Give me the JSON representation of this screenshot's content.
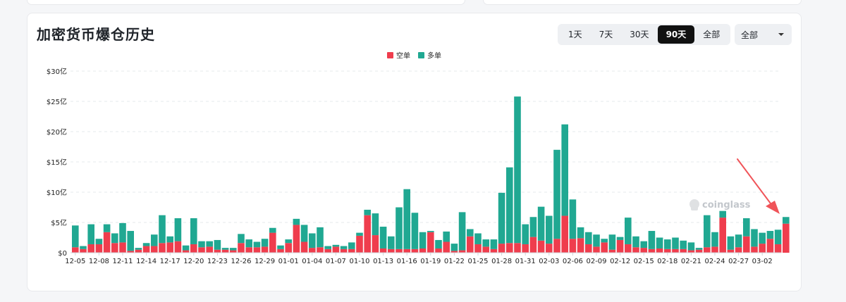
{
  "header": {
    "title": "加密货币爆仓历史"
  },
  "range_buttons": [
    {
      "label": "1天",
      "active": false
    },
    {
      "label": "7天",
      "active": false
    },
    {
      "label": "30天",
      "active": false
    },
    {
      "label": "90天",
      "active": true
    },
    {
      "label": "全部",
      "active": false
    }
  ],
  "select": {
    "value": "全部"
  },
  "watermark": {
    "text": "coinglass"
  },
  "colors": {
    "short": "#ef3d4d",
    "long": "#20a892",
    "arrow": "#f05459"
  },
  "chart_data": {
    "type": "bar",
    "stacked": true,
    "legend": [
      "空单",
      "多单"
    ],
    "legend_position": "top-center",
    "y_tick_labels": [
      "$0",
      "$5亿",
      "$10亿",
      "$15亿",
      "$20亿",
      "$25亿",
      "$30亿"
    ],
    "ylim": [
      0,
      30
    ],
    "grid": true,
    "x_tick_labels": [
      "12-05",
      "12-08",
      "12-11",
      "12-14",
      "12-17",
      "12-20",
      "12-23",
      "12-26",
      "12-29",
      "01-01",
      "01-04",
      "01-07",
      "01-10",
      "01-13",
      "01-16",
      "01-19",
      "01-22",
      "01-25",
      "01-28",
      "01-31",
      "02-03",
      "02-06",
      "02-09",
      "02-12",
      "02-15",
      "02-18",
      "02-21",
      "02-24",
      "02-27",
      "03-02"
    ],
    "series": [
      {
        "name": "空单",
        "values": [
          0.9,
          0.6,
          1.4,
          1.4,
          3.4,
          1.6,
          1.7,
          0.3,
          0.5,
          1.1,
          1.1,
          1.6,
          1.7,
          1.9,
          0.4,
          1.4,
          0.9,
          1.0,
          0.5,
          0.5,
          0.4,
          1.6,
          0.9,
          0.9,
          1.0,
          3.3,
          0.6,
          1.6,
          4.6,
          1.8,
          0.8,
          0.9,
          0.6,
          1.0,
          0.6,
          0.6,
          2.8,
          6.2,
          2.9,
          0.7,
          0.6,
          0.6,
          0.6,
          0.6,
          0.7,
          3.4,
          0.7,
          1.8,
          0.3,
          0.4,
          2.7,
          1.4,
          1.0,
          0.6,
          1.5,
          1.6,
          1.6,
          1.4,
          2.6,
          2.0,
          1.5,
          2.3,
          6.1,
          2.3,
          2.4,
          1.4,
          1.0,
          1.7,
          0.5,
          2.1,
          1.4,
          0.9,
          0.8,
          0.6,
          0.7,
          0.6,
          0.6,
          0.6,
          0.4,
          0.5,
          0.9,
          1.0,
          5.8,
          0.5,
          0.9,
          2.7,
          1.0,
          1.5,
          2.3,
          1.4,
          4.8
        ]
      },
      {
        "name": "多单",
        "values": [
          3.6,
          0.5,
          3.3,
          0.9,
          1.3,
          1.6,
          3.2,
          3.3,
          0.3,
          0.5,
          1.9,
          4.6,
          1.0,
          3.8,
          0.8,
          4.3,
          1.0,
          0.9,
          1.6,
          0.3,
          0.4,
          1.5,
          1.3,
          0.9,
          1.3,
          0.8,
          0.6,
          0.6,
          1.0,
          2.8,
          2.4,
          3.3,
          0.5,
          0.3,
          0.5,
          1.1,
          0.5,
          0.9,
          3.6,
          3.6,
          2.1,
          6.9,
          9.9,
          6.0,
          2.7,
          0.2,
          1.4,
          1.7,
          1.2,
          6.3,
          1.2,
          1.8,
          1.2,
          1.6,
          8.4,
          12.5,
          24.2,
          3.3,
          3.3,
          5.6,
          4.6,
          14.7,
          15.1,
          6.5,
          1.8,
          2.0,
          2.0,
          0.6,
          2.5,
          0.5,
          4.4,
          1.8,
          1.1,
          3.0,
          1.8,
          1.6,
          1.9,
          1.4,
          1.3,
          0.3,
          5.3,
          2.4,
          1.1,
          2.2,
          2.1,
          3.0,
          2.9,
          1.8,
          1.3,
          2.4,
          1.1
        ]
      }
    ]
  }
}
